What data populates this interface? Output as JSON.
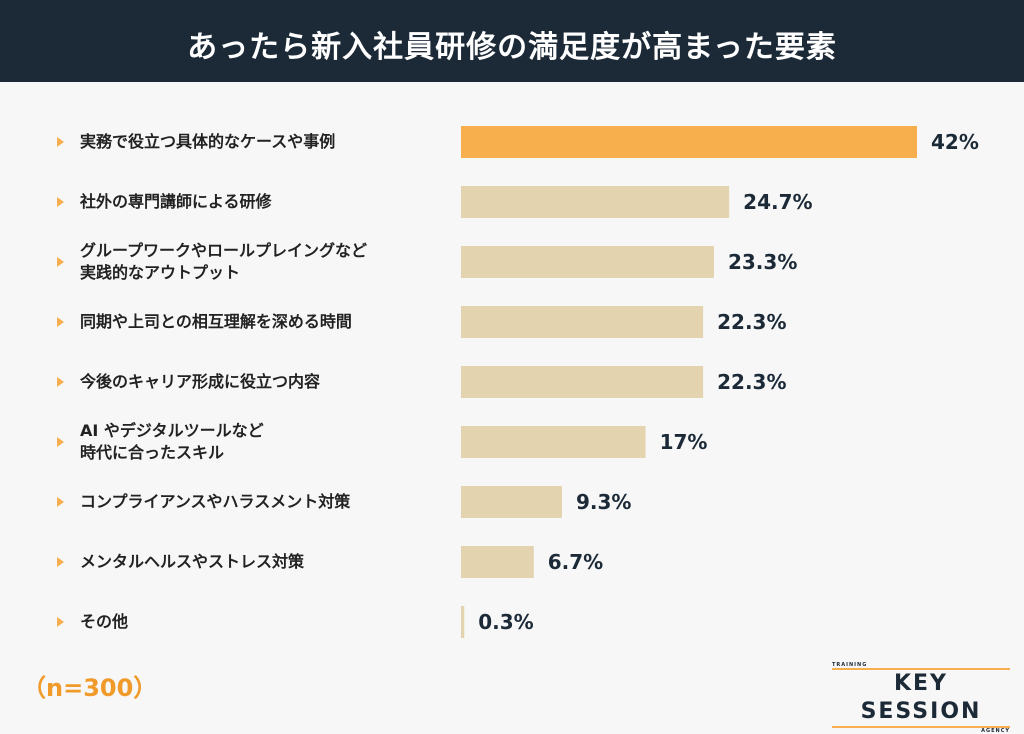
{
  "chart_data": {
    "type": "bar",
    "orientation": "horizontal",
    "title": "あったら新入社員研修の満足度が高まった要素",
    "categories": [
      "実務で役立つ具体的なケースや事例",
      "社外の専門講師による研修",
      "グループワークやロールプレイングなど\n実践的なアウトプット",
      "同期や上司との相互理解を深める時間",
      "今後のキャリア形成に役立つ内容",
      "AI やデジタルツールなど\n時代に合ったスキル",
      "コンプライアンスやハラスメント対策",
      "メンタルヘルスやストレス対策",
      "その他"
    ],
    "values": [
      42,
      24.7,
      23.3,
      22.3,
      22.3,
      17,
      9.3,
      6.7,
      0.3
    ],
    "value_labels": [
      "42%",
      "24.7%",
      "23.3%",
      "22.3%",
      "22.3%",
      "17%",
      "9.3%",
      "6.7%",
      "0.3%"
    ],
    "colors": [
      "#f7ae4c",
      "#e3d3ae",
      "#e3d3ae",
      "#e3d3ae",
      "#e3d3ae",
      "#e3d3ae",
      "#e3d3ae",
      "#e3d3ae",
      "#e3d3ae"
    ],
    "note": "（n=300）"
  },
  "logo": {
    "top": "TRAINING",
    "name": "KEY SESSION",
    "bottom": "AGENCY"
  }
}
